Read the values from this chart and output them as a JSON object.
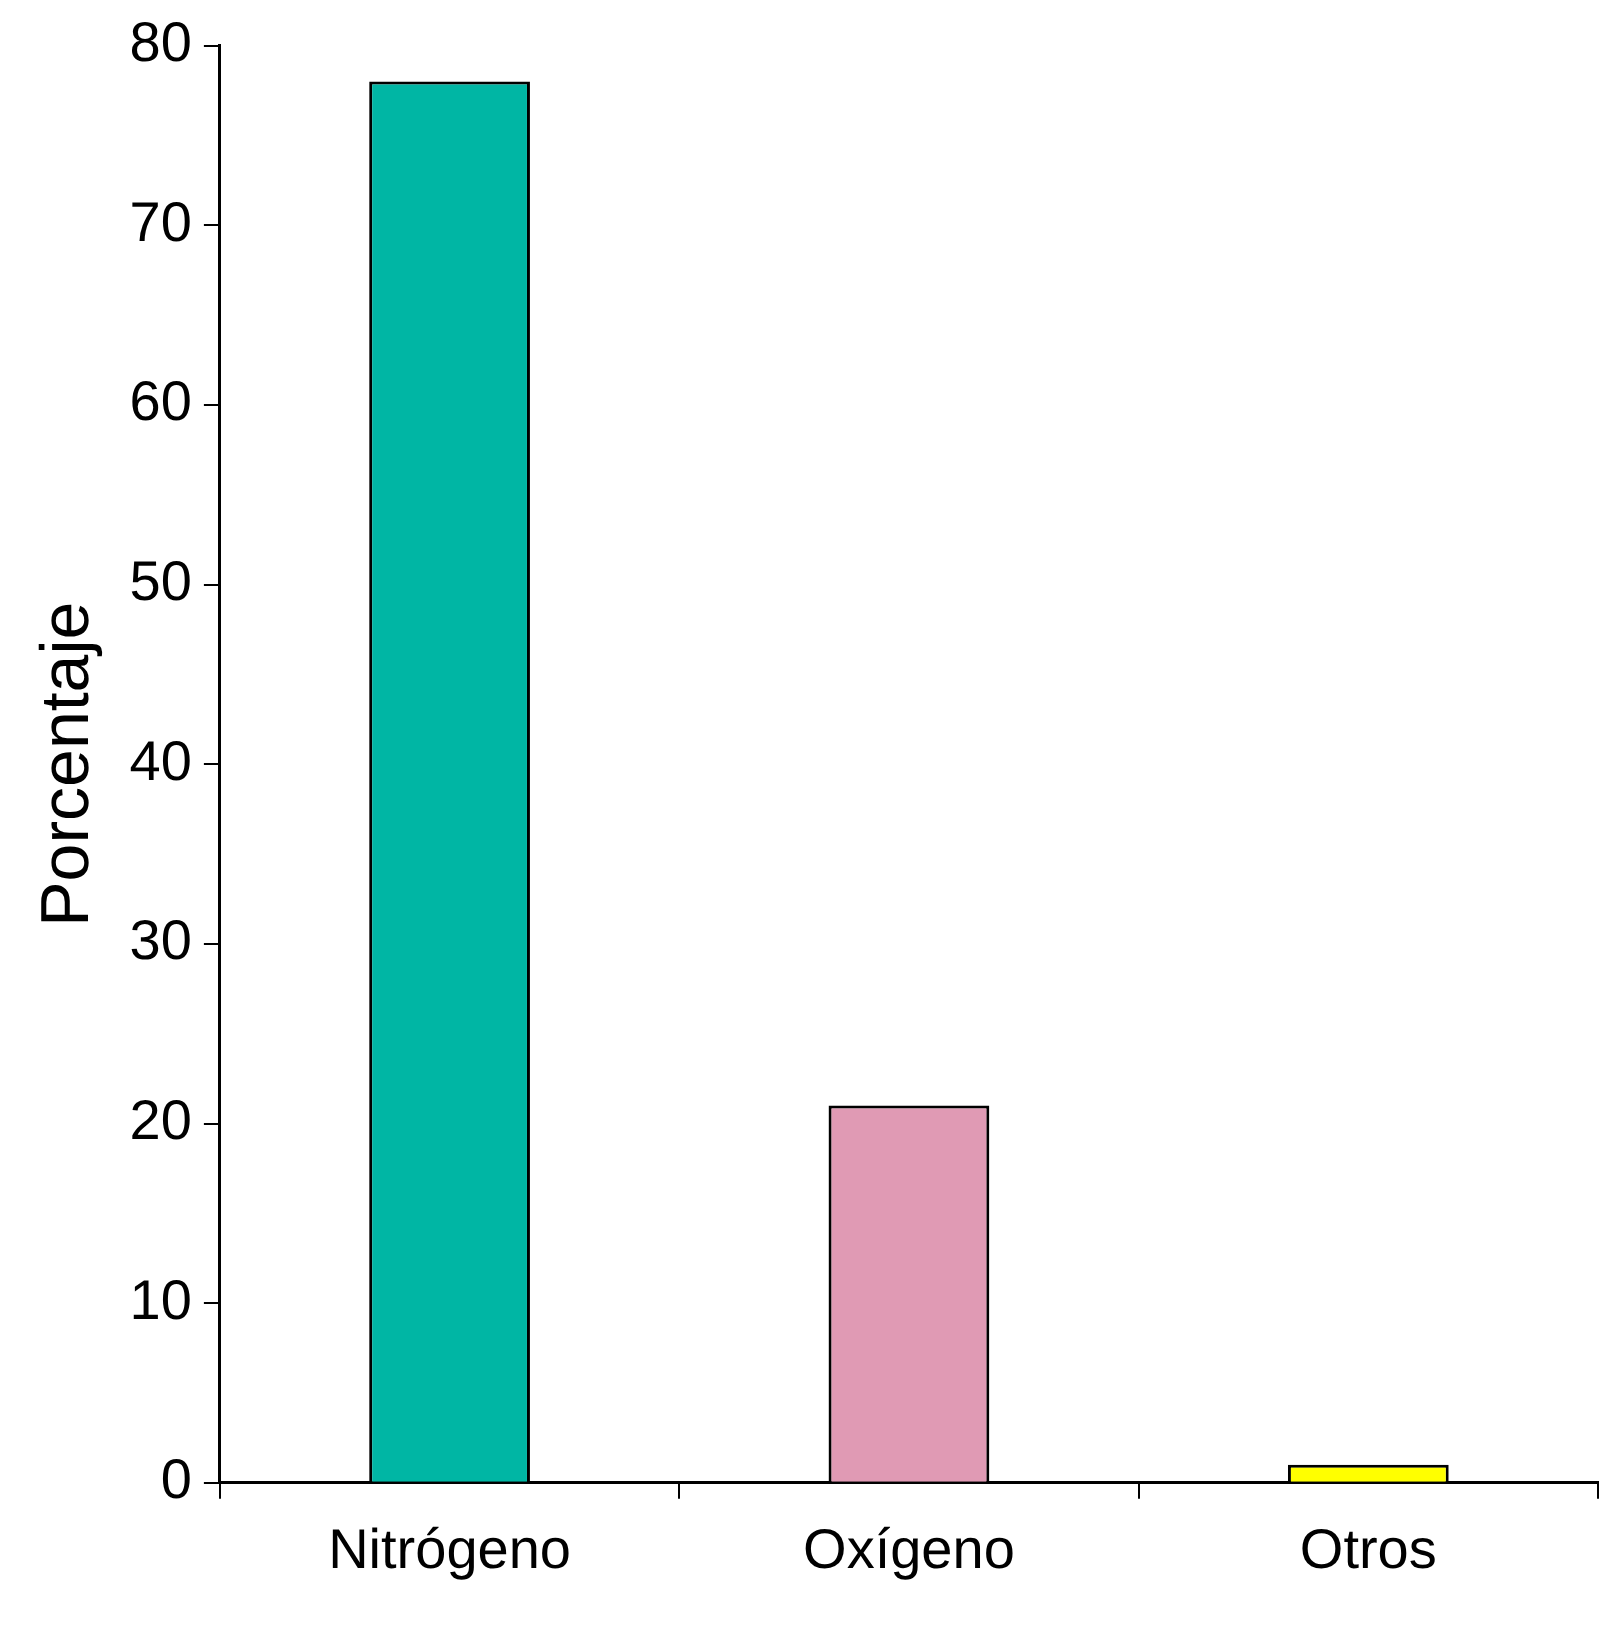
{
  "chart_data": {
    "type": "bar",
    "ylabel": "Porcentaje",
    "categories": [
      "Nitrógeno",
      "Oxígeno",
      "Otros"
    ],
    "values": [
      78,
      21,
      1
    ],
    "colors": [
      "#00b6a4",
      "#e09ab4",
      "#ffff00"
    ],
    "ylim": [
      0,
      80
    ],
    "yticks": [
      0,
      10,
      20,
      30,
      40,
      50,
      60,
      70,
      80
    ],
    "grid": false,
    "legend": false
  }
}
